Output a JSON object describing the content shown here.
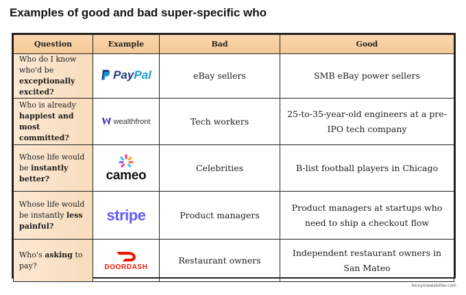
{
  "title": "Examples of good and bad super-specific who",
  "headers": {
    "question": "Question",
    "example": "Example",
    "bad": "Bad",
    "good": "Good"
  },
  "rows": [
    {
      "question_pre": "Who do I know who'd be ",
      "question_bold": "exceptionally excited?",
      "logo": {
        "icon": "paypal-logo",
        "text_a": "Pay",
        "text_b": "Pal"
      },
      "bad": "eBay sellers",
      "good": "SMB eBay power sellers"
    },
    {
      "question_pre": "Who is already ",
      "question_bold": "happiest and most committed?",
      "logo": {
        "icon": "wealthfront-logo",
        "text": "wealthfront"
      },
      "bad": "Tech workers",
      "good": "25-to-35-year-old engineers at a pre-IPO tech company"
    },
    {
      "question_pre": "Whose life would be ",
      "question_bold": "instantly better?",
      "logo": {
        "icon": "cameo-logo",
        "text": "cameo"
      },
      "bad": "Celebrities",
      "good": "B-list football players in Chicago"
    },
    {
      "question_pre": "Whose life would be instantly ",
      "question_bold": "less painful?",
      "logo": {
        "icon": "stripe-logo",
        "text": "stripe"
      },
      "bad": "Product managers",
      "good": "Product managers at startups who need to ship a checkout flow"
    },
    {
      "question_pre": "Who's ",
      "question_bold": "asking",
      "question_post": " to pay?",
      "logo": {
        "icon": "doordash-logo",
        "text": "DOORDASH"
      },
      "bad": "Restaurant owners",
      "good": "Independent restaurant owners in San Mateo"
    }
  ],
  "footer": "lennysnewsletter.com",
  "colors": {
    "header_bg": "#f5c996",
    "question_bg": "#f8dcbd",
    "paypal_dark": "#253b80",
    "paypal_light": "#179bd7",
    "stripe": "#635bff",
    "doordash": "#eb1700"
  }
}
